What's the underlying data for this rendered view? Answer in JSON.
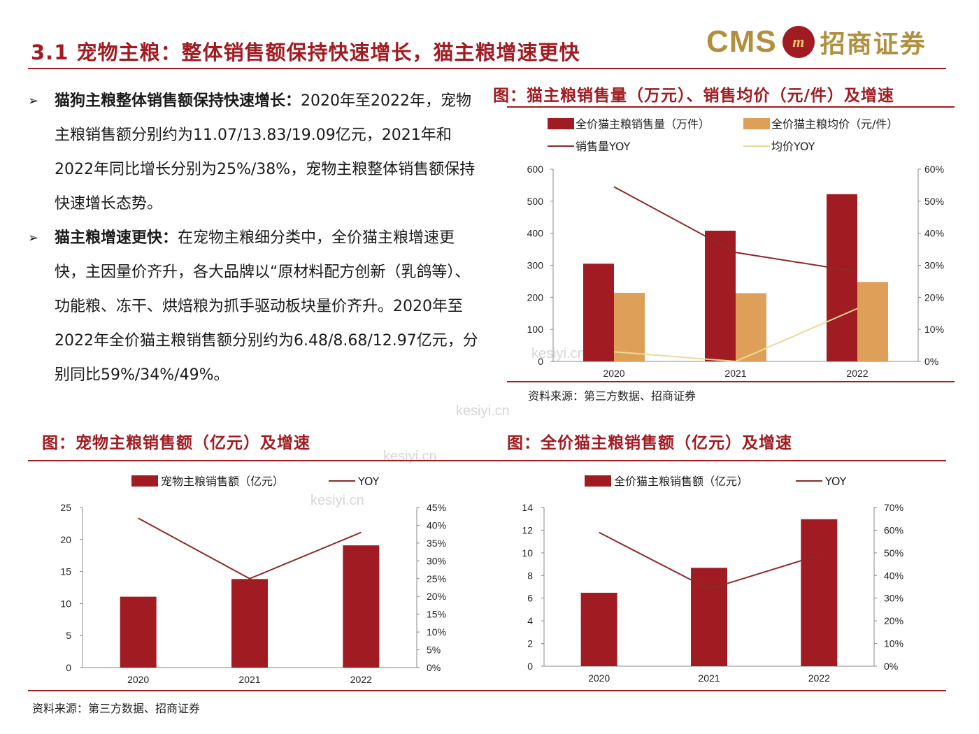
{
  "header": {
    "title": "3.1 宠物主粮：整体销售额保持快速增长，猫主粮增速更快",
    "logo_en": "CMS",
    "logo_mark": "m",
    "logo_cn": "招商证券"
  },
  "bullets": [
    {
      "bold": "猫狗主粮整体销售额保持快速增长：",
      "text": "2020年至2022年，宠物主粮销售额分别约为11.07/13.83/19.09亿元，2021年和2022年同比增长分别为25%/38%，宠物主粮整体销售额保持快速增长态势。"
    },
    {
      "bold": "猫主粮增速更快：",
      "text": "在宠物主粮细分类中，全价猫主粮增速更快，主因量价齐升，各大品牌以“原材料配方创新（乳鸽等）、功能粮、冻干、烘焙粮为抓手驱动板块量价齐升。2020年至2022年全价猫主粮销售额分别约为6.48/8.68/12.97亿元，分别同比59%/34%/49%。"
    }
  ],
  "watermark": "kesiyi.cn",
  "figures": {
    "top_right": {
      "title": "图：猫主粮销售量（万元）、销售均价（元/件）及增速",
      "source": "资料来源：第三方数据、招商证券"
    },
    "bottom_left": {
      "title": "图：宠物主粮销售额（亿元）及增速"
    },
    "bottom_right": {
      "title": "图：全价猫主粮销售额（亿元）及增速"
    },
    "bottom_source": "资料来源：第三方数据、招商证券"
  },
  "colors": {
    "accent": "#a01c22",
    "bar_primary": "#a01c22",
    "bar_secondary": "#dea059",
    "line_primary": "#8b2a2a",
    "line_secondary": "#ecd99a"
  },
  "chart_data": [
    {
      "id": "cat-volume-price",
      "type": "bar",
      "categories": [
        "2020",
        "2021",
        "2022"
      ],
      "series": [
        {
          "name": "全价猫主粮销售量（万件）",
          "kind": "bar",
          "axis": "left",
          "values": [
            305,
            408,
            522
          ]
        },
        {
          "name": "全价猫主粮均价（元/件）",
          "kind": "bar",
          "axis": "left",
          "values": [
            214,
            213,
            248
          ]
        },
        {
          "name": "销售量YOY",
          "kind": "line",
          "axis": "right",
          "values": [
            54.5,
            34,
            28
          ]
        },
        {
          "name": "均价YOY",
          "kind": "line",
          "axis": "right",
          "values": [
            3,
            0,
            16.5
          ]
        }
      ],
      "ylim": [
        0,
        600
      ],
      "yticks": [
        "0",
        "100",
        "200",
        "300",
        "400",
        "500",
        "600"
      ],
      "y2lim": [
        0,
        60
      ],
      "y2ticks": [
        "0%",
        "10%",
        "20%",
        "30%",
        "40%",
        "50%",
        "60%"
      ],
      "legend": "top",
      "grid": false
    },
    {
      "id": "pet-food-sales",
      "type": "bar",
      "categories": [
        "2020",
        "2021",
        "2022"
      ],
      "series": [
        {
          "name": "宠物主粮销售额（亿元）",
          "kind": "bar",
          "axis": "left",
          "values": [
            11.07,
            13.83,
            19.09
          ]
        },
        {
          "name": "YOY",
          "kind": "line",
          "axis": "right",
          "values": [
            42,
            25,
            38
          ]
        }
      ],
      "ylim": [
        0,
        25
      ],
      "yticks": [
        "0",
        "5",
        "10",
        "15",
        "20",
        "25"
      ],
      "y2lim": [
        0,
        45
      ],
      "y2ticks": [
        "0%",
        "5%",
        "10%",
        "15%",
        "20%",
        "25%",
        "30%",
        "35%",
        "40%",
        "45%"
      ],
      "legend": "top",
      "grid": false
    },
    {
      "id": "cat-food-sales",
      "type": "bar",
      "categories": [
        "2020",
        "2021",
        "2022"
      ],
      "series": [
        {
          "name": "全价猫主粮销售额（亿元）",
          "kind": "bar",
          "axis": "left",
          "values": [
            6.48,
            8.68,
            12.97
          ]
        },
        {
          "name": "YOY",
          "kind": "line",
          "axis": "right",
          "values": [
            59,
            34,
            49
          ]
        }
      ],
      "ylim": [
        0,
        14
      ],
      "yticks": [
        "0",
        "2",
        "4",
        "6",
        "8",
        "10",
        "12",
        "14"
      ],
      "y2lim": [
        0,
        70
      ],
      "y2ticks": [
        "0%",
        "10%",
        "20%",
        "30%",
        "40%",
        "50%",
        "60%",
        "70%"
      ],
      "legend": "top",
      "grid": false
    }
  ]
}
